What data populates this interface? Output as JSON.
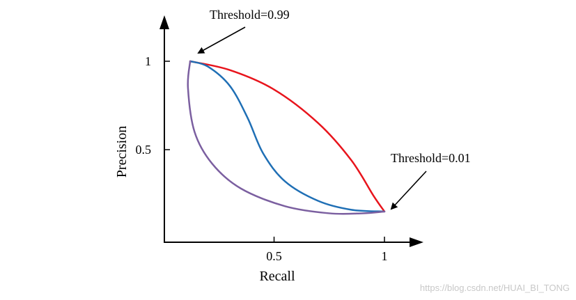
{
  "chart_data": {
    "type": "line",
    "xlabel": "Recall",
    "ylabel": "Precision",
    "xticks": [
      {
        "value": 0.5,
        "label": "0.5"
      },
      {
        "value": 1,
        "label": "1"
      }
    ],
    "yticks": [
      {
        "value": 0.5,
        "label": "0.5"
      },
      {
        "value": 1,
        "label": "1"
      }
    ],
    "grid": false,
    "series": [
      {
        "color": "#e8141c",
        "points": [
          [
            0.12,
            1.0
          ],
          [
            0.3,
            0.95
          ],
          [
            0.5,
            0.84
          ],
          [
            0.7,
            0.65
          ],
          [
            0.85,
            0.44
          ],
          [
            0.95,
            0.24
          ],
          [
            1.0,
            0.15
          ]
        ]
      },
      {
        "color": "#1f6fb5",
        "points": [
          [
            0.12,
            1.0
          ],
          [
            0.2,
            0.97
          ],
          [
            0.3,
            0.86
          ],
          [
            0.38,
            0.68
          ],
          [
            0.45,
            0.48
          ],
          [
            0.55,
            0.32
          ],
          [
            0.7,
            0.21
          ],
          [
            0.85,
            0.16
          ],
          [
            1.0,
            0.15
          ]
        ]
      },
      {
        "color": "#7b5fa0",
        "points": [
          [
            0.12,
            1.0
          ],
          [
            0.11,
            0.85
          ],
          [
            0.14,
            0.6
          ],
          [
            0.22,
            0.42
          ],
          [
            0.35,
            0.28
          ],
          [
            0.55,
            0.18
          ],
          [
            0.75,
            0.14
          ],
          [
            0.9,
            0.14
          ],
          [
            1.0,
            0.15
          ]
        ]
      }
    ],
    "annotations": [
      {
        "text": "Threshold=0.99",
        "points_to": [
          0.12,
          1.0
        ]
      },
      {
        "text": "Threshold=0.01",
        "points_to": [
          1.0,
          0.15
        ]
      }
    ]
  },
  "watermark": "https://blog.csdn.net/HUAI_BI_TONG"
}
